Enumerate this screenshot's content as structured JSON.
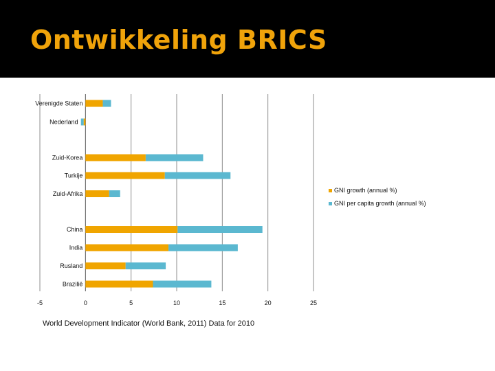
{
  "slide": {
    "title": "Ontwikkeling BRICS",
    "source_note": "World Development Indicator (World Bank, 2011) Data for 2010"
  },
  "colors": {
    "background": "#000000",
    "title": "#F0A30A",
    "series_1": "#F0A500",
    "series_2": "#5BB8D0",
    "gridline": "#8C8C8C"
  },
  "chart_data": {
    "type": "bar",
    "orientation": "horizontal",
    "stacked": true,
    "categories": [
      "Verenigde Staten",
      "Nederland",
      "Zuid-Korea",
      "Turkije",
      "Zuid-Afrika",
      "China",
      "India",
      "Rusland",
      "Brazilië"
    ],
    "series": [
      {
        "name": "GNI growth (annual %)",
        "values": [
          1.9,
          -0.2,
          6.6,
          8.7,
          2.6,
          10.1,
          9.1,
          4.4,
          7.4
        ]
      },
      {
        "name": "GNI per capita growth (annual %)",
        "values": [
          0.9,
          -0.3,
          6.3,
          7.2,
          1.2,
          9.3,
          7.6,
          4.4,
          6.4
        ]
      }
    ],
    "x_ticks": [
      "-5",
      "0",
      "5",
      "10",
      "15",
      "20",
      "25"
    ],
    "xlim": [
      -5,
      25
    ],
    "title": "",
    "xlabel": "",
    "ylabel": "",
    "grid": true,
    "legend_position": "right"
  }
}
